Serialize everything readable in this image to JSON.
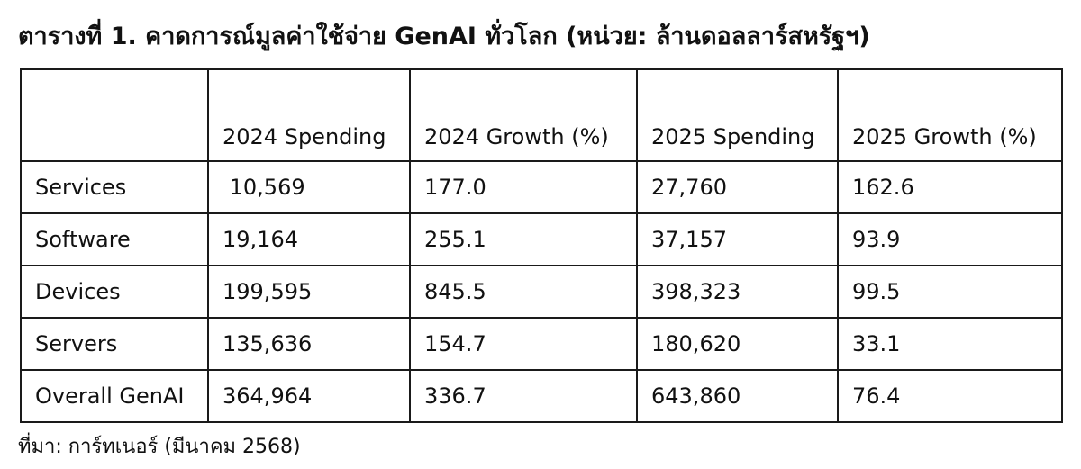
{
  "title": "ตารางที่ 1. คาดการณ์มูลค่าใช้จ่าย GenAI ทั่วโลก (หน่วย: ล้านดอลลาร์สหรัฐฯ)",
  "table": {
    "headers": [
      "",
      "2024 Spending",
      "2024 Growth (%)",
      "2025 Spending",
      "2025 Growth (%)"
    ],
    "rows": [
      [
        "Services",
        " 10,569",
        "177.0",
        "27,760",
        "162.6"
      ],
      [
        "Software",
        "19,164",
        "255.1",
        "37,157",
        "93.9"
      ],
      [
        "Devices",
        "199,595",
        "845.5",
        "398,323",
        "99.5"
      ],
      [
        "Servers",
        "135,636",
        "154.7",
        "180,620",
        "33.1"
      ],
      [
        "Overall GenAI",
        "364,964",
        "336.7",
        "643,860",
        "76.4"
      ]
    ]
  },
  "source": "ที่มา: การ์ทเนอร์ (มีนาคม 2568)"
}
